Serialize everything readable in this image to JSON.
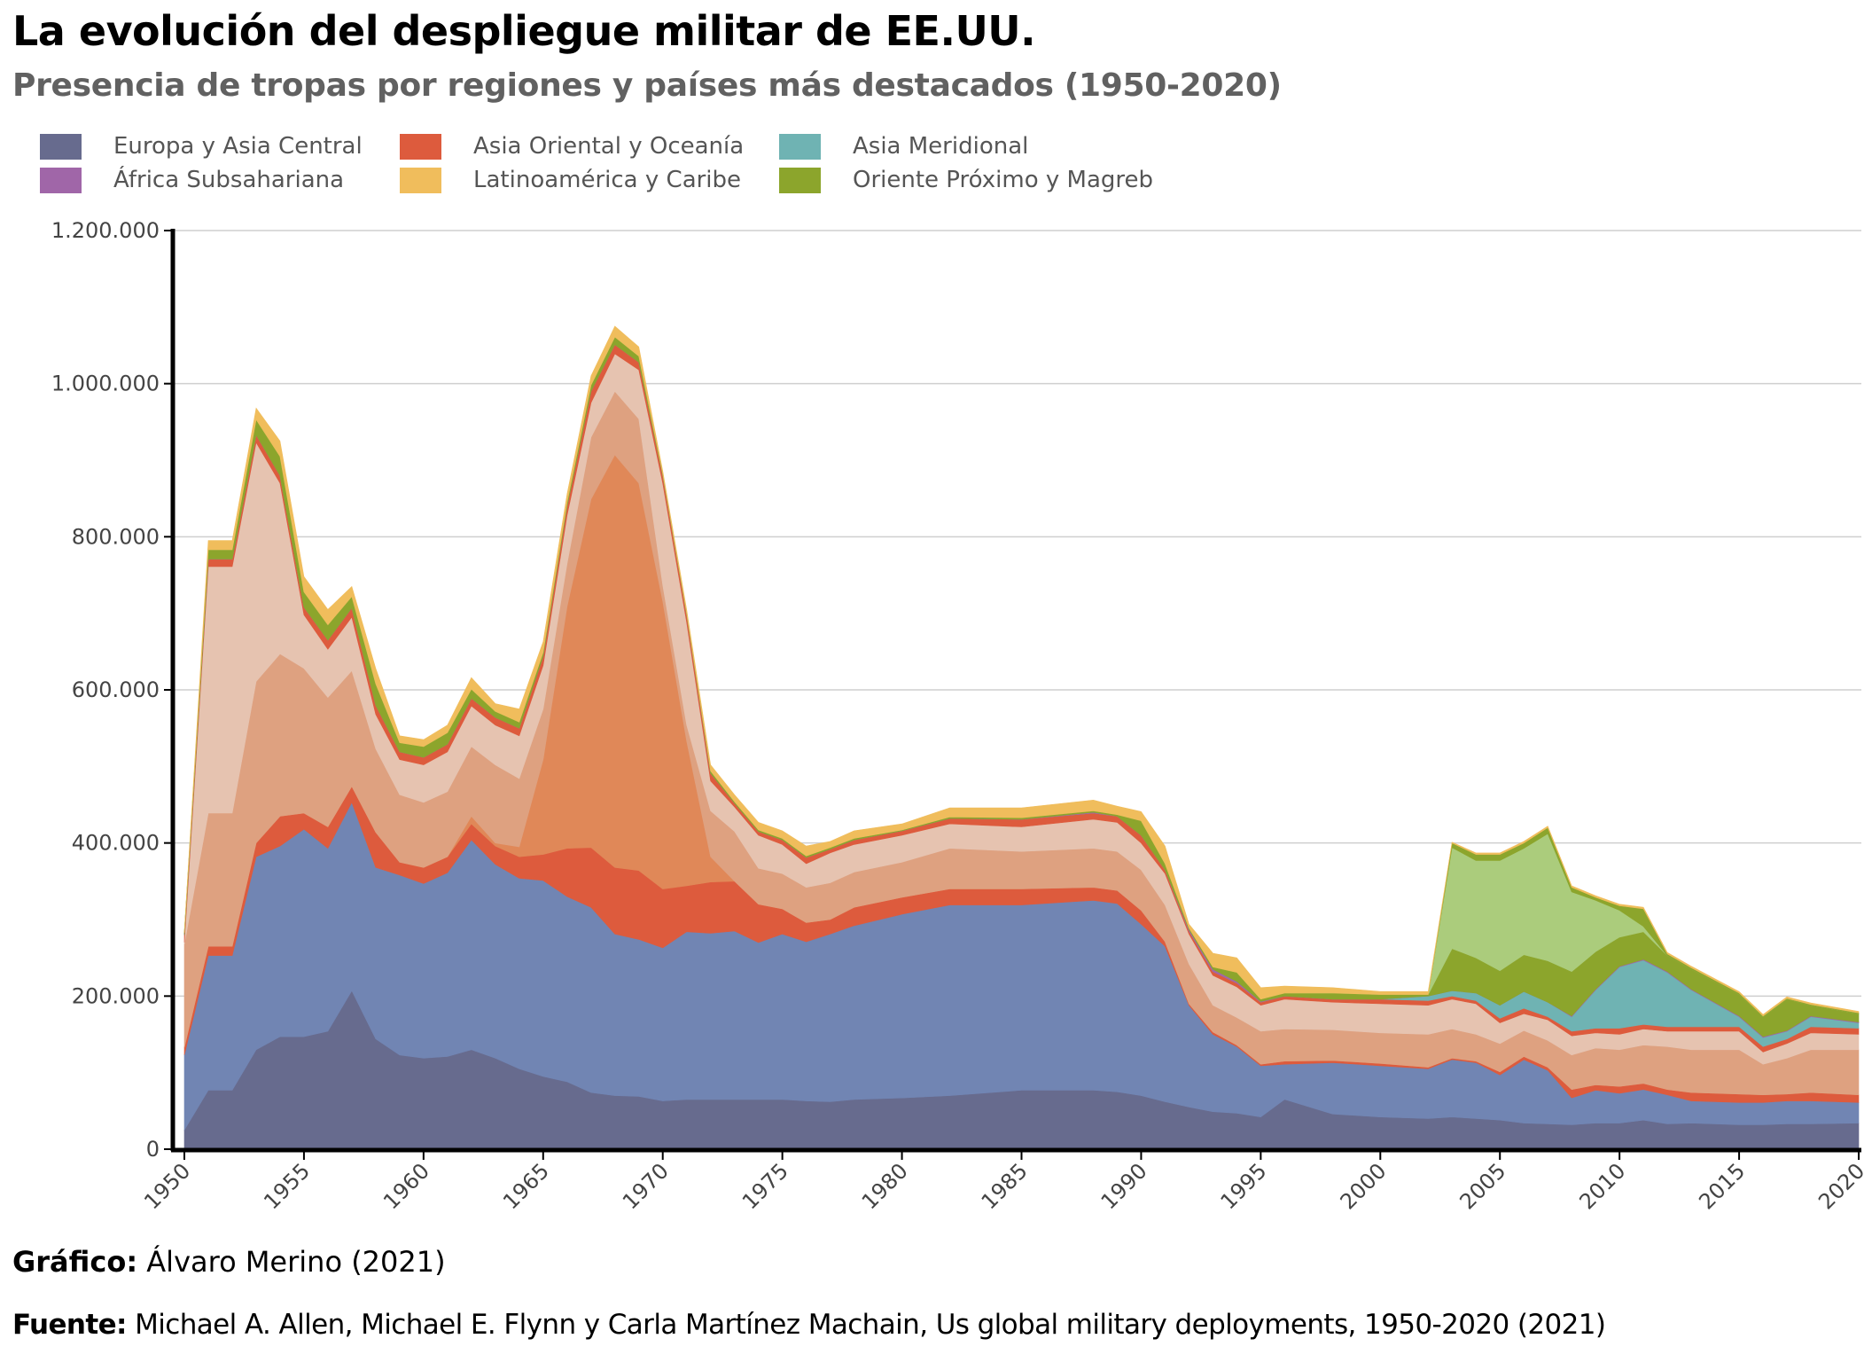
{
  "title": "La evolución del despliegue militar de EE.UU.",
  "subtitle": "Presencia de tropas por regiones y países más destacados (1950-2020)",
  "legend": [
    {
      "label": "Europa y Asia Central",
      "color": "#676b8e"
    },
    {
      "label": "Asia Oriental y Oceanía",
      "color": "#dd5b3d"
    },
    {
      "label": "Asia Meridional",
      "color": "#6fb3b3"
    },
    {
      "label": "África Subsahariana",
      "color": "#a066a8"
    },
    {
      "label": "Latinoamérica y Caribe",
      "color": "#f0bd5c"
    },
    {
      "label": "Oriente Próximo y Magreb",
      "color": "#8ca52c"
    }
  ],
  "footer": {
    "credit_label": "Gráfico:",
    "credit_text": "Álvaro Merino (2021)",
    "source_label": "Fuente:",
    "source_text": "Michael A. Allen, Michael E. Flynn y Carla Martínez Machain, Us global military deployments, 1950-2020 (2021)"
  },
  "chart_data": {
    "type": "area",
    "stacked": true,
    "xlim": [
      1950,
      2020
    ],
    "ylim": [
      0,
      1200000
    ],
    "grid": true,
    "legend_position": "top-left",
    "y_ticks": [
      {
        "value": 0,
        "label": "0"
      },
      {
        "value": 200000,
        "label": "200.000"
      },
      {
        "value": 400000,
        "label": "400.000"
      },
      {
        "value": 600000,
        "label": "600.000"
      },
      {
        "value": 800000,
        "label": "800.000"
      },
      {
        "value": 1000000,
        "label": "1.000.000"
      },
      {
        "value": 1200000,
        "label": "1.200.000"
      }
    ],
    "x_ticks": [
      "1950",
      "1955",
      "1960",
      "1965",
      "1970",
      "1975",
      "1980",
      "1985",
      "1990",
      "1995",
      "2000",
      "2005",
      "2010",
      "2015",
      "2020"
    ],
    "years": [
      1950,
      1951,
      1952,
      1953,
      1954,
      1955,
      1956,
      1957,
      1958,
      1959,
      1960,
      1961,
      1962,
      1963,
      1964,
      1965,
      1966,
      1967,
      1968,
      1969,
      1970,
      1971,
      1972,
      1973,
      1974,
      1975,
      1976,
      1977,
      1978,
      1980,
      1982,
      1985,
      1988,
      1989,
      1990,
      1991,
      1992,
      1993,
      1994,
      1995,
      1996,
      1998,
      2000,
      2002,
      2003,
      2004,
      2005,
      2006,
      2007,
      2008,
      2009,
      2010,
      2011,
      2012,
      2013,
      2015,
      2016,
      2017,
      2018,
      2020
    ],
    "series": [
      {
        "region": "Europa y Asia Central",
        "color": "#676b8e",
        "values": [
          25000,
          77000,
          77000,
          130000,
          147000,
          147000,
          154000,
          207000,
          144000,
          123000,
          119000,
          121000,
          130000,
          119000,
          105000,
          95000,
          88000,
          74000,
          70000,
          69000,
          63000,
          65000,
          65000,
          65000,
          65000,
          65000,
          63000,
          62000,
          65000,
          67000,
          70000,
          77000,
          77000,
          75000,
          70000,
          62000,
          55000,
          49000,
          47000,
          42000,
          65000,
          46000,
          42000,
          40000,
          42000,
          40000,
          38000,
          34000,
          33000,
          32000,
          34000,
          34000,
          38000,
          33000,
          34000,
          32000,
          32000,
          33000,
          33000,
          34000
        ]
      },
      {
        "region": "Europa y Asia Central",
        "color": "#7185b3",
        "values": [
          98000,
          176000,
          176000,
          252000,
          249000,
          271000,
          239000,
          246000,
          224000,
          235000,
          228000,
          240000,
          274000,
          253000,
          249000,
          256000,
          242000,
          242000,
          211000,
          205000,
          200000,
          219000,
          217000,
          220000,
          205000,
          216000,
          208000,
          219000,
          227000,
          240000,
          249000,
          242000,
          248000,
          246000,
          224000,
          203000,
          133000,
          101000,
          87000,
          67000,
          46000,
          67000,
          67000,
          65000,
          75000,
          73000,
          59000,
          83000,
          70000,
          35000,
          43000,
          39000,
          40000,
          38000,
          29000,
          29000,
          29000,
          30000,
          30000,
          27000
        ]
      },
      {
        "region": "Asia Oriental y Oceanía",
        "color": "#dd5b3d",
        "values": [
          10000,
          12000,
          12000,
          18000,
          39000,
          21000,
          28000,
          21000,
          46000,
          17000,
          21000,
          21000,
          21000,
          24000,
          28000,
          34000,
          63000,
          78000,
          87000,
          90000,
          77000,
          60000,
          67000,
          65000,
          50000,
          33000,
          25000,
          19000,
          24000,
          22000,
          21000,
          21000,
          17000,
          17000,
          18000,
          6000,
          2000,
          3000,
          2000,
          2000,
          4000,
          3000,
          3000,
          2000,
          2000,
          2000,
          4000,
          4000,
          4000,
          11000,
          7000,
          9000,
          8000,
          7000,
          11000,
          11000,
          10000,
          9000,
          11000,
          10000
        ]
      },
      {
        "region": "Asia Oriental y Oceanía",
        "color": "#e08858",
        "values": [
          0,
          0,
          0,
          0,
          0,
          0,
          0,
          0,
          0,
          0,
          0,
          0,
          10000,
          4000,
          13000,
          124000,
          316000,
          455000,
          539000,
          506000,
          376000,
          189000,
          33000,
          0,
          0,
          0,
          0,
          0,
          0,
          0,
          0,
          0,
          0,
          0,
          0,
          0,
          0,
          0,
          0,
          0,
          0,
          0,
          0,
          0,
          0,
          0,
          0,
          0,
          0,
          0,
          0,
          0,
          0,
          0,
          0,
          0,
          0,
          0,
          0,
          0
        ]
      },
      {
        "region": "Asia Oriental y Oceanía",
        "color": "#dea180",
        "values": [
          135000,
          174000,
          174000,
          211000,
          212000,
          189000,
          169000,
          151000,
          109000,
          88000,
          85000,
          85000,
          91000,
          102000,
          89000,
          66000,
          56000,
          81000,
          83000,
          84000,
          21000,
          21000,
          60000,
          65000,
          47000,
          46000,
          46000,
          48000,
          46000,
          46000,
          53000,
          49000,
          51000,
          51000,
          53000,
          48000,
          52000,
          35000,
          36000,
          43000,
          42000,
          40000,
          40000,
          43000,
          38000,
          35000,
          37000,
          34000,
          35000,
          45000,
          48000,
          48000,
          50000,
          56000,
          56000,
          58000,
          40000,
          47000,
          56000,
          59000
        ]
      },
      {
        "region": "Asia Oriental y Oceanía",
        "color": "#e6c3b0",
        "values": [
          2000,
          322000,
          322000,
          312000,
          223000,
          70000,
          63000,
          70000,
          45000,
          46000,
          49000,
          52000,
          53000,
          52000,
          56000,
          57000,
          63000,
          45000,
          49000,
          64000,
          133000,
          134000,
          39000,
          32000,
          43000,
          38000,
          31000,
          39000,
          36000,
          35000,
          32000,
          32000,
          38000,
          38000,
          35000,
          41000,
          39000,
          39000,
          40000,
          34000,
          39000,
          36000,
          38000,
          38000,
          39000,
          40000,
          27000,
          22000,
          27000,
          25000,
          20000,
          20000,
          21000,
          20000,
          24000,
          24000,
          16000,
          19000,
          22000,
          20000
        ]
      },
      {
        "region": "Asia Oriental y Oceanía",
        "color": "#dd5b3d",
        "values": [
          10000,
          10000,
          10000,
          10000,
          10000,
          10000,
          12000,
          12000,
          12000,
          10000,
          10000,
          10000,
          10000,
          10000,
          10000,
          12000,
          12000,
          15000,
          12000,
          10000,
          10000,
          10000,
          10000,
          5000,
          5000,
          6000,
          8000,
          5000,
          6000,
          6000,
          7000,
          10000,
          8000,
          8000,
          10000,
          5000,
          4000,
          5000,
          5000,
          4000,
          4000,
          4000,
          6000,
          6000,
          4000,
          4000,
          6000,
          7000,
          4000,
          6000,
          6000,
          8000,
          6000,
          6000,
          6000,
          6000,
          7000,
          6000,
          8000,
          8000
        ]
      },
      {
        "region": "Asia Meridional",
        "color": "#6fb3b3",
        "values": [
          0,
          0,
          0,
          0,
          0,
          0,
          0,
          0,
          0,
          0,
          0,
          0,
          0,
          0,
          0,
          0,
          0,
          0,
          0,
          0,
          0,
          0,
          0,
          0,
          0,
          0,
          0,
          0,
          0,
          0,
          0,
          0,
          0,
          0,
          0,
          0,
          0,
          0,
          0,
          0,
          0,
          0,
          0,
          6000,
          7000,
          10000,
          17000,
          22000,
          19000,
          19000,
          50000,
          80000,
          84000,
          71000,
          48000,
          13000,
          12000,
          10000,
          13000,
          7000
        ]
      },
      {
        "region": "África Subsahariana",
        "color": "#a066a8",
        "values": [
          0,
          0,
          0,
          0,
          0,
          0,
          0,
          0,
          0,
          0,
          0,
          0,
          0,
          0,
          0,
          0,
          0,
          0,
          0,
          0,
          0,
          0,
          0,
          0,
          0,
          0,
          0,
          0,
          0,
          0,
          0,
          0,
          1000,
          0,
          0,
          0,
          2000,
          3000,
          2000,
          1000,
          0,
          0,
          0,
          0,
          0,
          0,
          0,
          0,
          0,
          1000,
          1000,
          1000,
          1000,
          1000,
          1000,
          1000,
          1000,
          1000,
          1000,
          1000
        ]
      },
      {
        "region": "Oriente Próximo y Magreb",
        "color": "#8ca52c",
        "values": [
          3000,
          12000,
          12000,
          20000,
          25000,
          20000,
          20000,
          15000,
          28000,
          12000,
          14000,
          15000,
          12000,
          8000,
          8000,
          5000,
          5000,
          8000,
          10000,
          8000,
          2000,
          2000,
          3000,
          2000,
          2000,
          2000,
          2000,
          2000,
          2000,
          1000,
          2000,
          2000,
          2000,
          2000,
          19000,
          8000,
          2000,
          3000,
          12000,
          3000,
          4000,
          8000,
          6000,
          2000,
          55000,
          46000,
          45000,
          48000,
          54000,
          58000,
          49000,
          38000,
          36000,
          21000,
          26000,
          28000,
          26000,
          41000,
          14000,
          11000
        ]
      },
      {
        "region": "Oriente Próximo y Magreb",
        "color": "#abcc7c",
        "values": [
          0,
          0,
          0,
          0,
          0,
          0,
          0,
          0,
          0,
          0,
          0,
          0,
          0,
          0,
          0,
          0,
          0,
          0,
          0,
          0,
          0,
          0,
          0,
          0,
          0,
          0,
          0,
          0,
          0,
          0,
          0,
          0,
          0,
          0,
          0,
          0,
          0,
          0,
          0,
          0,
          0,
          0,
          0,
          0,
          132000,
          127000,
          144000,
          139000,
          166000,
          104000,
          67000,
          35000,
          7000,
          0,
          0,
          0,
          0,
          0,
          0,
          0
        ]
      },
      {
        "region": "Oriente Próximo y Magreb",
        "color": "#8ca52c",
        "values": [
          0,
          0,
          0,
          0,
          0,
          0,
          0,
          0,
          0,
          0,
          0,
          0,
          0,
          0,
          0,
          0,
          0,
          0,
          0,
          0,
          0,
          0,
          0,
          0,
          0,
          0,
          0,
          0,
          0,
          0,
          0,
          0,
          0,
          0,
          0,
          0,
          0,
          0,
          0,
          0,
          0,
          0,
          0,
          0,
          6000,
          8000,
          8000,
          7000,
          8000,
          6000,
          4000,
          6000,
          23000,
          2000,
          2000,
          2000,
          1000,
          1000,
          1000,
          1000
        ]
      },
      {
        "region": "Latinoamérica y Caribe",
        "color": "#f0bd5c",
        "values": [
          2000,
          12000,
          12000,
          15000,
          20000,
          20000,
          20000,
          13000,
          20000,
          9000,
          9000,
          10000,
          15000,
          10000,
          17000,
          14000,
          11000,
          12000,
          14000,
          12000,
          4000,
          5000,
          8000,
          9000,
          10000,
          10000,
          13000,
          8000,
          10000,
          8000,
          12000,
          13000,
          14000,
          11000,
          12000,
          23000,
          5000,
          18000,
          19000,
          15000,
          9000,
          7000,
          4000,
          4000,
          1000,
          2000,
          2000,
          2000,
          2000,
          2000,
          2000,
          2000,
          2000,
          2000,
          2000,
          2000,
          2000,
          2000,
          2000,
          2000
        ]
      }
    ]
  }
}
